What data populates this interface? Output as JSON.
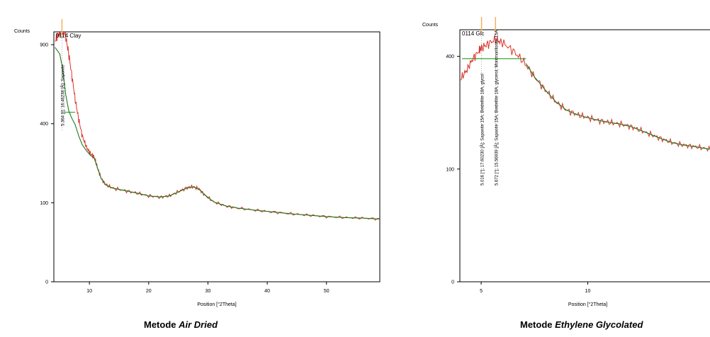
{
  "captions": [
    {
      "prefix": "Metode",
      "emph": "Air Dried"
    },
    {
      "prefix": "Metode",
      "emph": "Ethylene Glycolated"
    }
  ],
  "colors": {
    "measured": "#d9342b",
    "fit": "#1f7a1f",
    "baseline": "#44b044",
    "marker": "#f2b25c"
  },
  "chart_data": [
    {
      "type": "line",
      "xlabel": "Position [°2Theta]",
      "ylabel": "Counts",
      "panel_label": "0114 Clay",
      "xlim": [
        4,
        59
      ],
      "ylim": [
        0,
        1000
      ],
      "y_scale": "sqrt",
      "xticks": [
        10,
        20,
        30,
        40,
        50
      ],
      "yticks": [
        0,
        100,
        400,
        900
      ],
      "grid": false,
      "series": [
        {
          "role": "measured",
          "points": [
            [
              4.2,
              930
            ],
            [
              4.8,
              980
            ],
            [
              5.364,
              1020
            ],
            [
              5.9,
              985
            ],
            [
              6.4,
              860
            ],
            [
              7,
              690
            ],
            [
              7.6,
              530
            ],
            [
              8.2,
              420
            ],
            [
              8.8,
              340
            ],
            [
              9.5,
              290
            ],
            [
              10.2,
              262
            ],
            [
              10.8,
              250
            ],
            [
              11.4,
              205
            ],
            [
              12,
              170
            ],
            [
              12.8,
              150
            ],
            [
              14,
              140
            ],
            [
              16,
              133
            ],
            [
              18,
              126
            ],
            [
              20,
              118
            ],
            [
              22,
              115
            ],
            [
              23.5,
              118
            ],
            [
              25,
              130
            ],
            [
              26.5,
              142
            ],
            [
              27.5,
              145
            ],
            [
              28.5,
              138
            ],
            [
              29.5,
              120
            ],
            [
              31,
              102
            ],
            [
              33,
              92
            ],
            [
              35,
              87
            ],
            [
              38,
              82
            ],
            [
              41,
              78
            ],
            [
              44,
              74
            ],
            [
              47,
              71
            ],
            [
              50,
              68
            ],
            [
              53,
              66
            ],
            [
              56,
              65
            ],
            [
              59,
              63
            ]
          ]
        },
        {
          "role": "fit",
          "points": [
            [
              4.2,
              880
            ],
            [
              5,
              830
            ],
            [
              5.5,
              720
            ],
            [
              6,
              560
            ],
            [
              6.5,
              470
            ],
            [
              7,
              430
            ],
            [
              7.6,
              395
            ],
            [
              8.2,
              340
            ],
            [
              8.8,
              300
            ],
            [
              9.5,
              275
            ],
            [
              10.2,
              255
            ],
            [
              10.8,
              245
            ],
            [
              11.4,
              205
            ],
            [
              12,
              170
            ],
            [
              12.8,
              150
            ],
            [
              14,
              140
            ],
            [
              16,
              133
            ],
            [
              18,
              126
            ],
            [
              20,
              118
            ],
            [
              22,
              115
            ],
            [
              23.5,
              118
            ],
            [
              25,
              129
            ],
            [
              26.5,
              141
            ],
            [
              27.5,
              144
            ],
            [
              28.5,
              137
            ],
            [
              29.5,
              120
            ],
            [
              31,
              102
            ],
            [
              33,
              92
            ],
            [
              35,
              87
            ],
            [
              38,
              82
            ],
            [
              41,
              78
            ],
            [
              44,
              74
            ],
            [
              47,
              71
            ],
            [
              50,
              68
            ],
            [
              53,
              66
            ],
            [
              56,
              65
            ],
            [
              59,
              63
            ]
          ]
        }
      ],
      "baseline": [
        [
          5.364,
          460
        ],
        [
          7.6,
          460
        ]
      ],
      "peak_markers": [
        5.364
      ],
      "annotations": [
        "5.364 [°]; 16.46238 [Å]; Saponite"
      ]
    },
    {
      "type": "line",
      "xlabel": "Position [°2Theta]",
      "ylabel": "Counts",
      "panel_label": "0114 Glc",
      "xlim": [
        4,
        16
      ],
      "ylim": [
        0,
        500
      ],
      "y_scale": "sqrt",
      "xticks": [
        5,
        10
      ],
      "yticks": [
        0,
        100,
        400
      ],
      "grid": false,
      "series": [
        {
          "role": "measured",
          "points": [
            [
              4,
              320
            ],
            [
              4.3,
              350
            ],
            [
              4.6,
              390
            ],
            [
              4.9,
              420
            ],
            [
              5.016,
              430
            ],
            [
              5.3,
              445
            ],
            [
              5.672,
              462
            ],
            [
              6,
              450
            ],
            [
              6.5,
              420
            ],
            [
              7,
              380
            ],
            [
              7.5,
              330
            ],
            [
              8,
              290
            ],
            [
              8.5,
              255
            ],
            [
              9,
              232
            ],
            [
              9.5,
              220
            ],
            [
              10,
              212
            ],
            [
              10.5,
              205
            ],
            [
              11,
              200
            ],
            [
              11.5,
              196
            ],
            [
              12,
              190
            ],
            [
              12.5,
              180
            ],
            [
              13,
              170
            ],
            [
              13.5,
              160
            ],
            [
              14,
              152
            ],
            [
              14.5,
              147
            ],
            [
              15,
              144
            ],
            [
              15.5,
              140
            ],
            [
              16,
              137
            ]
          ]
        },
        {
          "role": "fit",
          "points": [
            [
              7.1,
              375
            ],
            [
              7.5,
              330
            ],
            [
              8,
              290
            ],
            [
              8.5,
              255
            ],
            [
              9,
              232
            ],
            [
              9.5,
              220
            ],
            [
              10,
              212
            ],
            [
              10.5,
              205
            ],
            [
              11,
              200
            ],
            [
              11.5,
              196
            ],
            [
              12,
              190
            ],
            [
              12.5,
              180
            ],
            [
              13,
              170
            ],
            [
              13.5,
              160
            ],
            [
              14,
              152
            ],
            [
              14.5,
              147
            ],
            [
              15,
              144
            ],
            [
              15.5,
              140
            ],
            [
              16,
              137
            ]
          ]
        }
      ],
      "baseline": [
        [
          4.1,
          392
        ],
        [
          7.1,
          392
        ]
      ],
      "peak_markers": [
        5.016,
        5.672
      ],
      "annotations": [
        "5.016 [°]; 17.60230 [Å]; Saponite 15A; Beidellite 18A, glycol",
        "5.672 [°]; 15.56939 [Å]; Saponite 15A; Beidellite 18A, glycerol; Montmorillonite 15A"
      ]
    }
  ]
}
